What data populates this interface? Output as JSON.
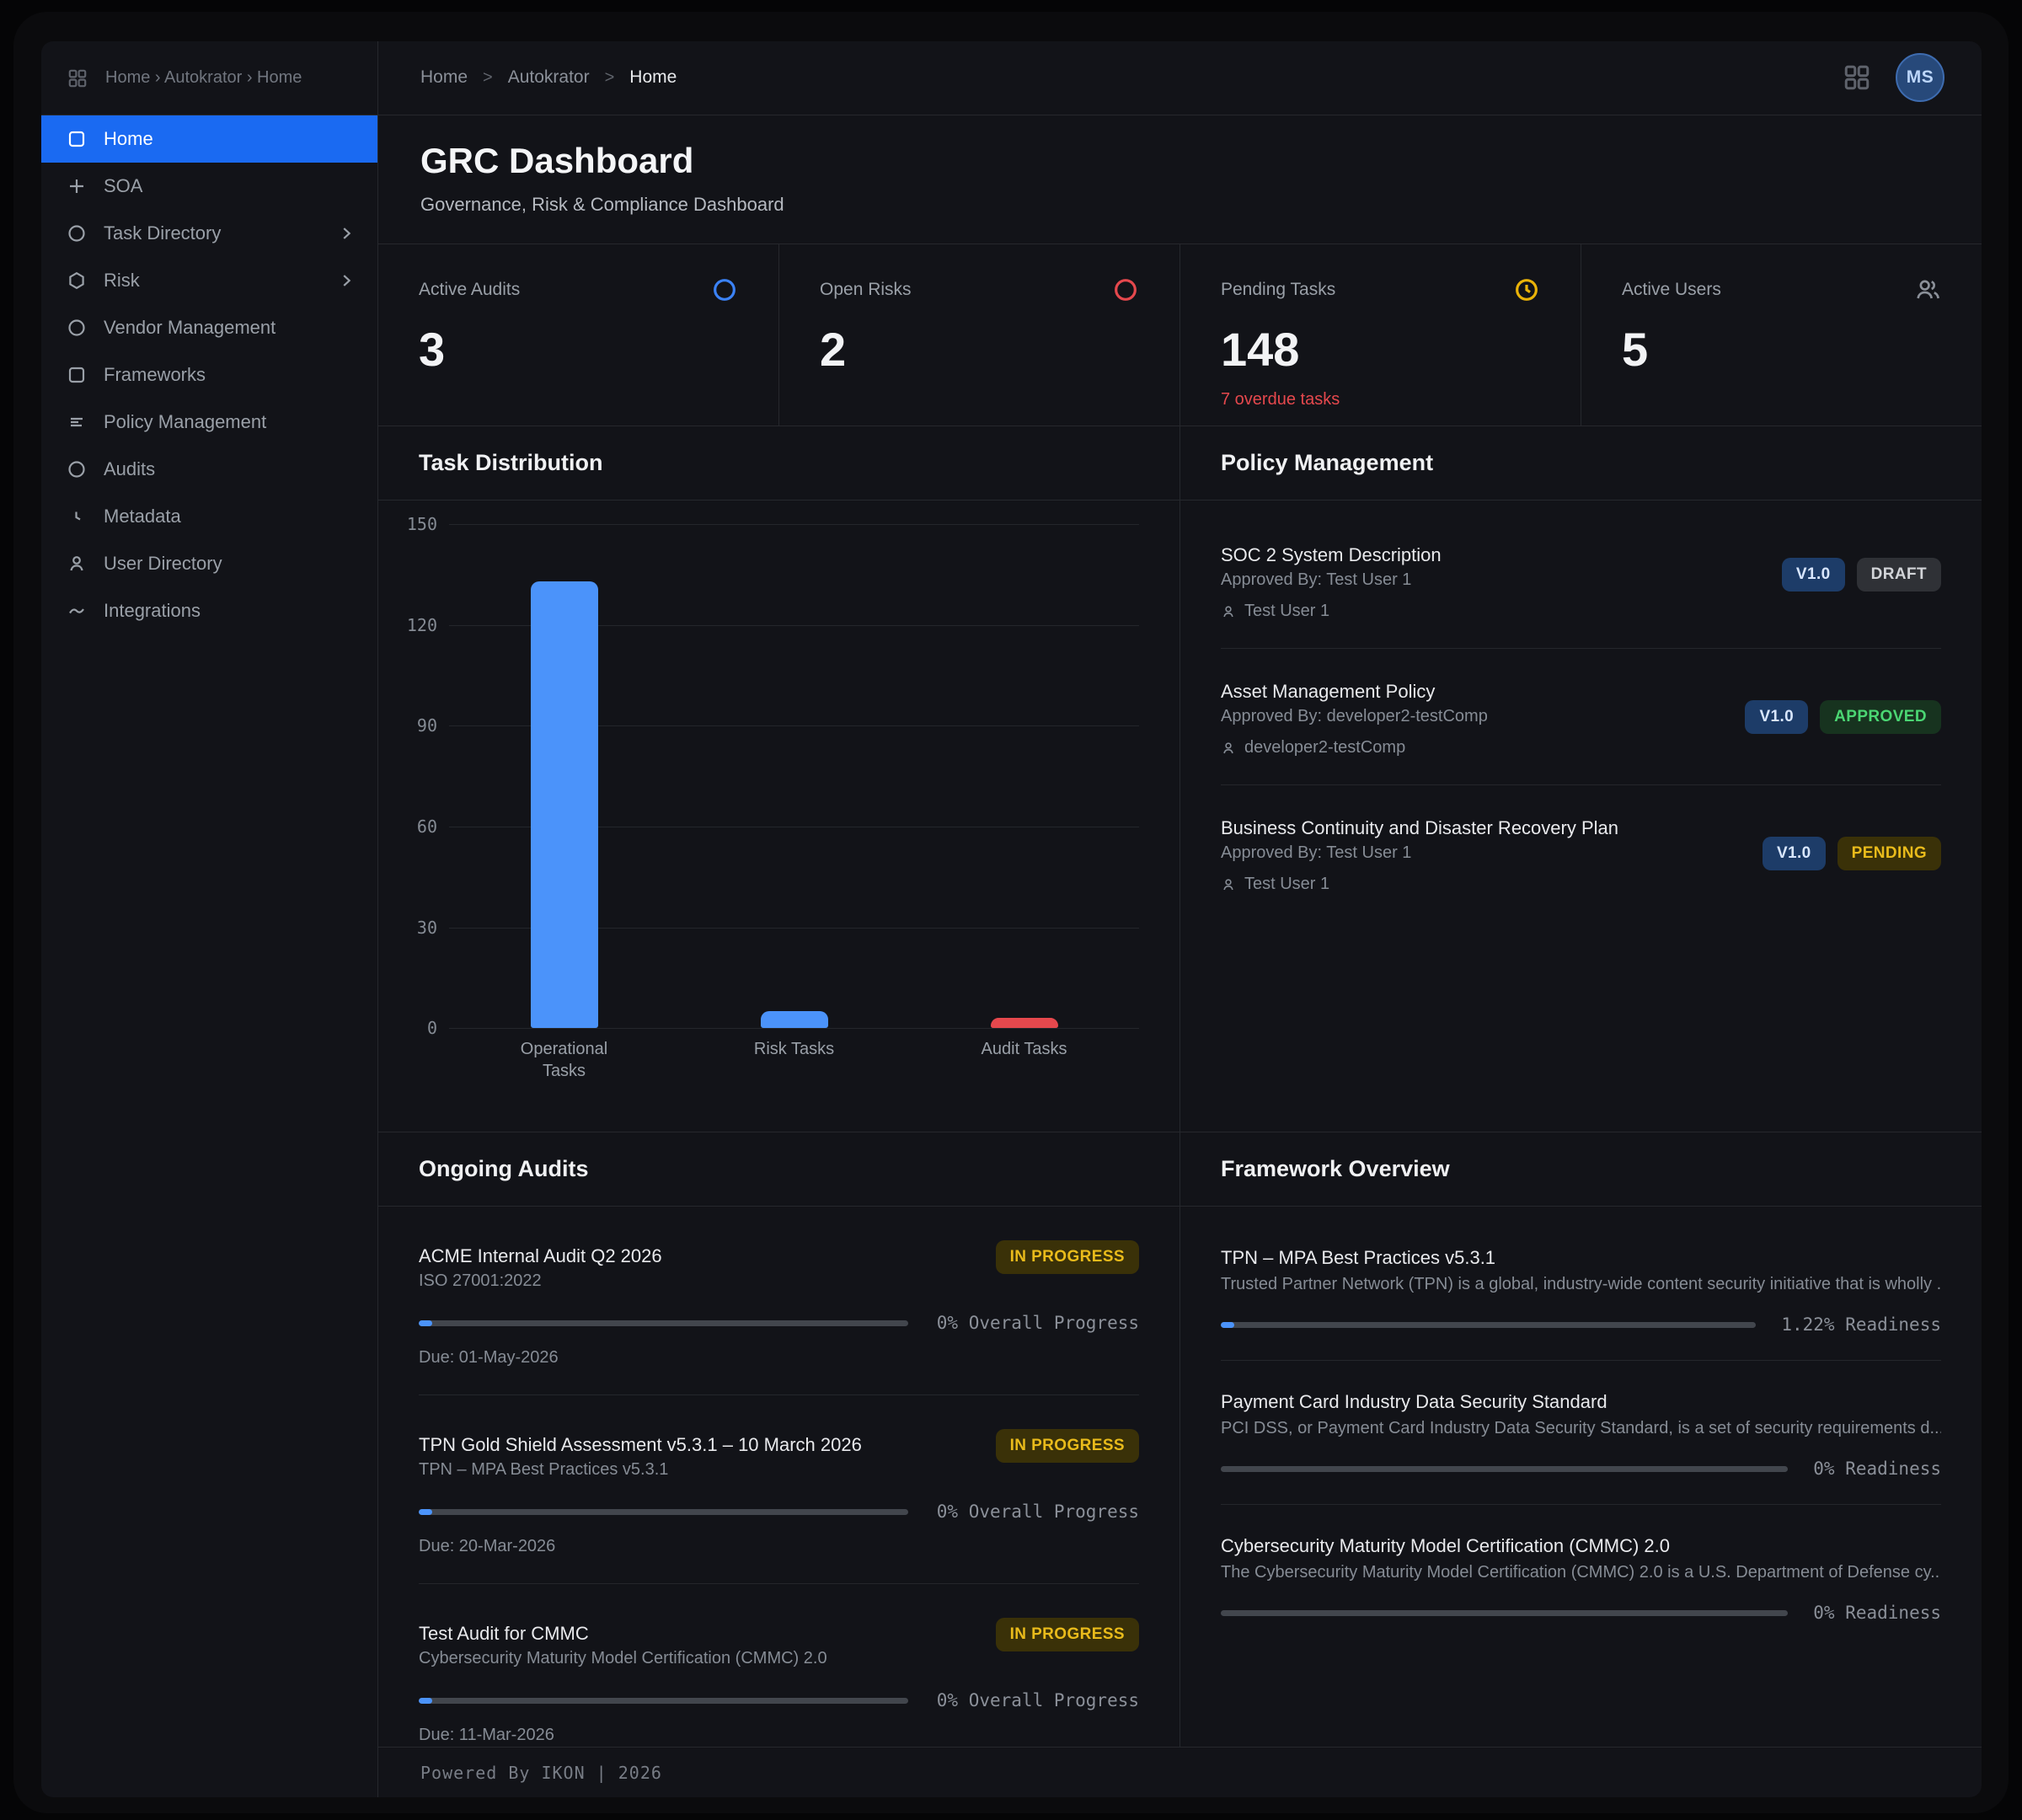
{
  "chart_data": {
    "type": "bar",
    "title": "Task Distribution",
    "categories": [
      "Operational Tasks",
      "Risk Tasks",
      "Audit Tasks"
    ],
    "values": [
      133,
      5,
      3
    ],
    "colors": [
      "#4b93fa",
      "#4b93fa",
      "#e5484d"
    ],
    "xlabel": "",
    "ylabel": "",
    "ylim": [
      0,
      150
    ],
    "yticks": [
      0,
      30,
      60,
      90,
      120,
      150
    ],
    "grid": true,
    "legend": "none"
  },
  "sidebar": {
    "breadcrumb": "Home › Autokrator › Home",
    "items": [
      {
        "label": "Home",
        "icon": "square",
        "selected": true
      },
      {
        "label": "SOA",
        "icon": "plus"
      },
      {
        "label": "Task Directory",
        "icon": "circle",
        "chevron": true
      },
      {
        "label": "Risk",
        "icon": "hexagon",
        "chevron": true
      },
      {
        "label": "Vendor Management",
        "icon": "circle"
      },
      {
        "label": "Frameworks",
        "icon": "square"
      },
      {
        "label": "Policy Management",
        "icon": "lines"
      },
      {
        "label": "Audits",
        "icon": "circle"
      },
      {
        "label": "Metadata",
        "icon": "clock"
      },
      {
        "label": "User Directory",
        "icon": "user"
      },
      {
        "label": "Integrations",
        "icon": "wave"
      }
    ]
  },
  "header": {
    "breadcrumb": [
      "Home",
      "Autokrator",
      "Home"
    ],
    "separator": ">",
    "avatar_initials": "MS"
  },
  "page": {
    "title": "GRC Dashboard",
    "subtitle": "Governance, Risk & Compliance Dashboard"
  },
  "stats": {
    "active_audits": {
      "label": "Active Audits",
      "value": "3"
    },
    "open_risks": {
      "label": "Open Risks",
      "value": "2"
    },
    "pending_tasks": {
      "label": "Pending Tasks",
      "value": "148",
      "note": "7 overdue tasks"
    },
    "active_users": {
      "label": "Active Users",
      "value": "5"
    }
  },
  "sections": {
    "task_distribution": "Task Distribution",
    "policy_management": "Policy Management",
    "ongoing_audits": "Ongoing Audits",
    "framework_overview": "Framework Overview"
  },
  "policies": [
    {
      "title": "SOC 2 System Description",
      "approved_by": "Approved By: Test User 1",
      "owner": "Test User 1",
      "version": "V1.0",
      "status": "DRAFT"
    },
    {
      "title": "Asset Management Policy",
      "approved_by": "Approved By: developer2-testComp",
      "owner": "developer2-testComp",
      "version": "V1.0",
      "status": "APPROVED"
    },
    {
      "title": "Business Continuity and Disaster Recovery Plan",
      "approved_by": "Approved By: Test User 1",
      "owner": "Test User 1",
      "version": "V1.0",
      "status": "PENDING"
    }
  ],
  "audits": [
    {
      "title": "ACME Internal Audit Q2 2026",
      "framework": "ISO 27001:2022",
      "status": "IN PROGRESS",
      "progress_pct": 0,
      "progress_label": "0% Overall Progress",
      "due": "Due: 01-May-2026"
    },
    {
      "title": "TPN Gold Shield Assessment v5.3.1 – 10 March 2026",
      "framework": "TPN – MPA Best Practices v5.3.1",
      "status": "IN PROGRESS",
      "progress_pct": 0,
      "progress_label": "0% Overall Progress",
      "due": "Due: 20-Mar-2026"
    },
    {
      "title": "Test Audit for CMMC",
      "framework": "Cybersecurity Maturity Model Certification (CMMC) 2.0",
      "status": "IN PROGRESS",
      "progress_pct": 0,
      "progress_label": "0% Overall Progress",
      "due": "Due: 11-Mar-2026"
    }
  ],
  "frameworks": [
    {
      "title": "TPN – MPA Best Practices v5.3.1",
      "description": "Trusted Partner Network (TPN) is a global, industry-wide content security initiative that is wholly ...",
      "readiness_pct": 1.22,
      "readiness_label": "1.22% Readiness"
    },
    {
      "title": "Payment Card Industry Data Security Standard",
      "description": "PCI DSS, or Payment Card Industry Data Security Standard, is a set of security requirements d...",
      "readiness_pct": 0,
      "readiness_label": "0% Readiness"
    },
    {
      "title": "Cybersecurity Maturity Model Certification (CMMC) 2.0",
      "description": "The Cybersecurity Maturity Model Certification (CMMC) 2.0 is a U.S. Department of Defense cy...",
      "readiness_pct": 0,
      "readiness_label": "0% Readiness"
    }
  ],
  "footer": {
    "text": "Powered By IKON  |  2026"
  },
  "colors": {
    "accent_blue": "#1a6af2",
    "bar_blue": "#4b93fa",
    "bar_red": "#e5484d",
    "status_yellow": "#e9bb1b",
    "status_green": "#4bd673",
    "overdue_red": "#e5484d",
    "stat_icon_blue": "#3b82f6",
    "stat_icon_red": "#e5484d",
    "stat_icon_yellow": "#eab308"
  }
}
